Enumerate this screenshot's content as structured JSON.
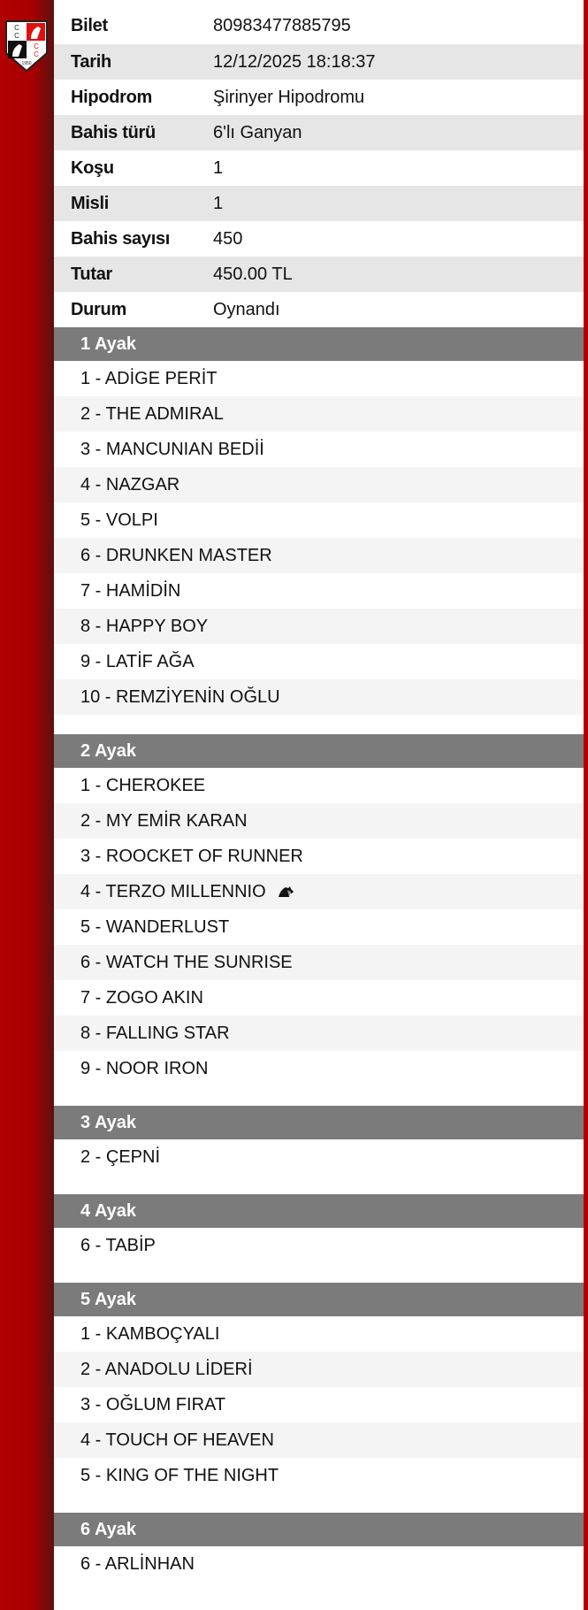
{
  "info": [
    {
      "label": "Bilet",
      "value": "80983477885795"
    },
    {
      "label": "Tarih",
      "value": "12/12/2025 18:18:37"
    },
    {
      "label": "Hipodrom",
      "value": "Şirinyer Hipodromu"
    },
    {
      "label": "Bahis türü",
      "value": "6'lı Ganyan"
    },
    {
      "label": "Koşu",
      "value": "1"
    },
    {
      "label": "Misli",
      "value": "1"
    },
    {
      "label": "Bahis sayısı",
      "value": "450"
    },
    {
      "label": "Tutar",
      "value": "450.00 TL"
    },
    {
      "label": "Durum",
      "value": "Oynandı"
    }
  ],
  "legs": [
    {
      "title": "1 Ayak",
      "items": [
        "1 - ADİGE PERİT",
        "2 - THE ADMIRAL",
        "3 - MANCUNIAN BEDİİ",
        "4 - NAZGAR",
        "5 - VOLPI",
        "6 - DRUNKEN MASTER",
        "7 - HAMİDİN",
        "8 - HAPPY BOY",
        "9 - LATİF AĞA",
        "10 - REMZİYENİN OĞLU"
      ]
    },
    {
      "title": "2 Ayak",
      "items": [
        "1 - CHEROKEE",
        "2 - MY EMİR KARAN",
        "3 - ROOCKET OF RUNNER",
        "4 - TERZO MILLENNIO",
        "5 - WANDERLUST",
        "6 - WATCH THE SUNRISE",
        "7 - ZOGO AKIN",
        "8 - FALLING STAR",
        "9 - NOOR IRON"
      ],
      "icon_item": 3,
      "icon": "horse-icon"
    },
    {
      "title": "3 Ayak",
      "items": [
        "2 - ÇEPNİ"
      ]
    },
    {
      "title": "4 Ayak",
      "items": [
        "6 - TABİP"
      ]
    },
    {
      "title": "5 Ayak",
      "items": [
        "1 - KAMBOÇYALI",
        "2 - ANADOLU LİDERİ",
        "3 - OĞLUM FIRAT",
        "4 - TOUCH OF HEAVEN",
        "5 - KING OF THE NIGHT"
      ]
    },
    {
      "title": "6 Ayak",
      "items": [
        "6 - ARLİNHAN"
      ]
    }
  ],
  "colors": {
    "brand": "#b00000",
    "header": "#7b7b7b"
  }
}
